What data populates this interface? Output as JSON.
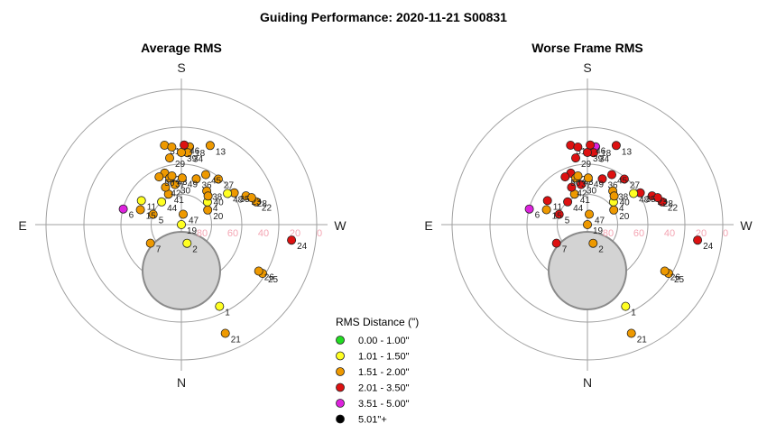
{
  "title": "Guiding Performance: 2020-11-21 S00831",
  "directions": {
    "top": "S",
    "bottom": "N",
    "left": "E",
    "right": "W"
  },
  "altitude_labels": [
    "80",
    "60",
    "40",
    "20",
    "0"
  ],
  "legend": {
    "title": "RMS Distance (\")",
    "items": [
      {
        "label": "0.00 - 1.00\"",
        "color": "#22dd22"
      },
      {
        "label": "1.01 - 1.50\"",
        "color": "#ffff22"
      },
      {
        "label": "1.51 - 2.00\"",
        "color": "#ee9900"
      },
      {
        "label": "2.01 - 3.50\"",
        "color": "#dd1111"
      },
      {
        "label": "3.51 - 5.00\"",
        "color": "#dd22dd"
      },
      {
        "label": "5.01\"+",
        "color": "#000000"
      }
    ]
  },
  "chart_data": [
    {
      "type": "scatter",
      "projection": "polar",
      "title": "Average RMS",
      "point_fields": [
        "label",
        "azimuth_deg",
        "altitude_deg",
        "rms_class"
      ],
      "rms_classes": [
        "0.00 - 1.00\"",
        "1.01 - 1.50\"",
        "1.51 - 2.00\"",
        "2.01 - 3.50\"",
        "3.51 - 5.00\"",
        "5.01\"+"
      ],
      "points": [
        [
          "1",
          155,
          30,
          1
        ],
        [
          "2",
          163,
          77,
          1
        ],
        [
          "4",
          49,
          67,
          1
        ],
        [
          "5",
          290,
          70,
          2
        ],
        [
          "6",
          285,
          50,
          4
        ],
        [
          "7",
          239,
          66,
          2
        ],
        [
          "11",
          301,
          59,
          1
        ],
        [
          "13",
          20,
          34,
          2
        ],
        [
          "15",
          290,
          61,
          2
        ],
        [
          "18",
          6,
          38,
          2
        ],
        [
          "19",
          135,
          90,
          1
        ],
        [
          "20",
          61,
          70,
          2
        ],
        [
          "21",
          158,
          12,
          2
        ],
        [
          "22",
          73,
          38,
          2
        ],
        [
          "23",
          66,
          43,
          2
        ],
        [
          "24",
          98,
          16,
          3
        ],
        [
          "25",
          121,
          27,
          2
        ],
        [
          "26",
          121,
          30,
          2
        ],
        [
          "27",
          39,
          51,
          2
        ],
        [
          "28",
          69,
          40,
          2
        ],
        [
          "29",
          350,
          45,
          2
        ],
        [
          "30",
          351,
          63,
          2
        ],
        [
          "31",
          348,
          36,
          2
        ],
        [
          "32",
          342,
          54,
          2
        ],
        [
          "33",
          353,
          38,
          2
        ],
        [
          "34",
          5,
          42,
          2
        ],
        [
          "35",
          59,
          49,
          2
        ],
        [
          "36",
          18,
          58,
          2
        ],
        [
          "37",
          346,
          58,
          2
        ],
        [
          "38",
          37,
          62,
          2
        ],
        [
          "39",
          0,
          42,
          2
        ],
        [
          "40",
          43,
          64,
          2
        ],
        [
          "41",
          337,
          68,
          2
        ],
        [
          "42",
          337,
          63,
          2
        ],
        [
          "43",
          349,
          57,
          2
        ],
        [
          "44",
          319,
          70,
          1
        ],
        [
          "45",
          26,
          53,
          2
        ],
        [
          "46",
          2,
          37,
          3
        ],
        [
          "47",
          10,
          83,
          2
        ],
        [
          "48",
          56,
          53,
          1
        ],
        [
          "49",
          1,
          59,
          2
        ],
        [
          "50",
          335,
          55,
          2
        ]
      ]
    },
    {
      "type": "scatter",
      "projection": "polar",
      "title": "Worse Frame RMS",
      "point_fields": [
        "label",
        "azimuth_deg",
        "altitude_deg",
        "rms_class"
      ],
      "rms_classes": [
        "0.00 - 1.00\"",
        "1.01 - 1.50\"",
        "1.51 - 2.00\"",
        "2.01 - 3.50\"",
        "3.51 - 5.00\"",
        "5.01\"+"
      ],
      "points": [
        [
          "1",
          155,
          30,
          1
        ],
        [
          "2",
          163,
          77,
          2
        ],
        [
          "4",
          49,
          67,
          1
        ],
        [
          "5",
          290,
          70,
          3
        ],
        [
          "6",
          285,
          50,
          4
        ],
        [
          "7",
          239,
          66,
          3
        ],
        [
          "11",
          301,
          59,
          3
        ],
        [
          "13",
          20,
          34,
          3
        ],
        [
          "15",
          290,
          61,
          2
        ],
        [
          "18",
          6,
          38,
          4
        ],
        [
          "19",
          135,
          90,
          2
        ],
        [
          "20",
          61,
          70,
          2
        ],
        [
          "21",
          158,
          12,
          2
        ],
        [
          "22",
          73,
          38,
          3
        ],
        [
          "23",
          66,
          43,
          3
        ],
        [
          "24",
          98,
          16,
          3
        ],
        [
          "25",
          121,
          27,
          2
        ],
        [
          "26",
          121,
          30,
          2
        ],
        [
          "27",
          39,
          51,
          3
        ],
        [
          "28",
          69,
          40,
          3
        ],
        [
          "29",
          350,
          45,
          3
        ],
        [
          "30",
          351,
          63,
          3
        ],
        [
          "31",
          348,
          36,
          3
        ],
        [
          "32",
          342,
          54,
          3
        ],
        [
          "33",
          353,
          38,
          3
        ],
        [
          "34",
          5,
          42,
          3
        ],
        [
          "35",
          59,
          49,
          3
        ],
        [
          "36",
          18,
          58,
          3
        ],
        [
          "37",
          346,
          58,
          2
        ],
        [
          "38",
          37,
          62,
          2
        ],
        [
          "39",
          0,
          42,
          3
        ],
        [
          "40",
          43,
          64,
          2
        ],
        [
          "41",
          337,
          68,
          2
        ],
        [
          "42",
          337,
          63,
          3
        ],
        [
          "43",
          349,
          57,
          2
        ],
        [
          "44",
          319,
          70,
          3
        ],
        [
          "45",
          26,
          53,
          3
        ],
        [
          "46",
          2,
          37,
          3
        ],
        [
          "47",
          10,
          83,
          2
        ],
        [
          "48",
          56,
          53,
          1
        ],
        [
          "49",
          1,
          59,
          2
        ],
        [
          "50",
          335,
          55,
          3
        ]
      ]
    }
  ]
}
